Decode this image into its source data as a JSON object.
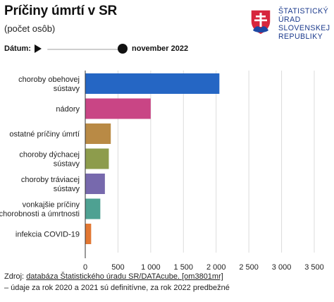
{
  "header": {
    "title": "Príčiny úmrtí v SR",
    "subtitle": "(počet osôb)"
  },
  "logo": {
    "org_lines": [
      "ŠTATISTICKÝ",
      "ÚRAD",
      "SLOVENSKEJ",
      "REPUBLIKY"
    ]
  },
  "date_control": {
    "label": "Dátum:",
    "value": "november 2022",
    "position": 1.0
  },
  "colors": {
    "grid": "#dcdcdc",
    "axis": "#333333"
  },
  "chart_data": {
    "type": "bar",
    "orientation": "horizontal",
    "title": "Príčiny úmrtí v SR",
    "subtitle": "(počet osôb)",
    "categories": [
      [
        "choroby obehovej",
        "sústavy"
      ],
      [
        "nádory"
      ],
      [
        "ostatné príčiny úmrtí"
      ],
      [
        "choroby dýchacej",
        "sústavy"
      ],
      [
        "choroby tráviacej",
        "sústavy"
      ],
      [
        "vonkajšie príčiny",
        "chorobnosti a úmrtnosti"
      ],
      [
        "infekcia COVID-19"
      ]
    ],
    "values": [
      2050,
      1000,
      390,
      360,
      300,
      230,
      90
    ],
    "bar_colors": [
      "#2566c4",
      "#c94585",
      "#b98a45",
      "#8d9c4c",
      "#7769ad",
      "#4ea192",
      "#e27732"
    ],
    "xlim": [
      0,
      3500
    ],
    "x_ticks": [
      0,
      500,
      1000,
      1500,
      2000,
      2500,
      3000,
      3500
    ],
    "x_tick_labels": [
      "0",
      "500",
      "1 000",
      "1 500",
      "2 000",
      "2 500",
      "3 000",
      "3 500"
    ],
    "grid": true
  },
  "source": {
    "prefix": "Zdroj: ",
    "link_text": "databáza Štatistického úradu SR/DATAcube. [om3801mr]",
    "note": "– údaje za rok 2020 a 2021 sú definitívne, za rok 2022 predbežné"
  }
}
